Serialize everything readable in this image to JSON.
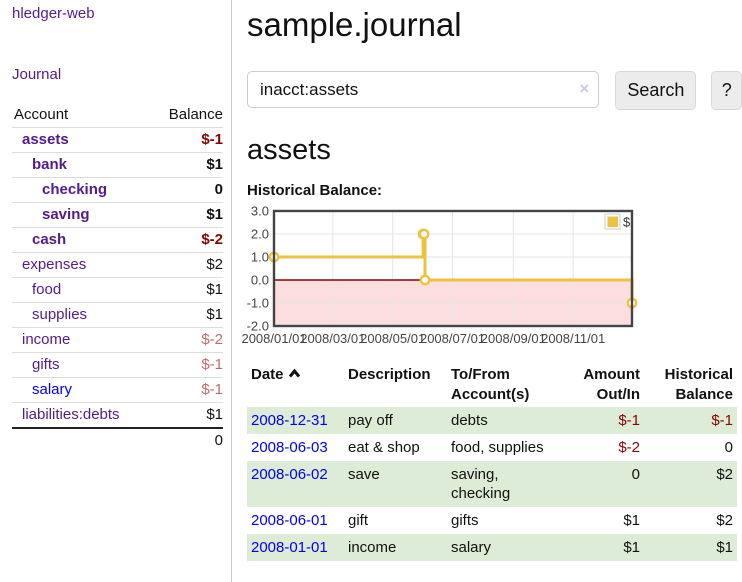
{
  "app": {
    "title": "hledger-web"
  },
  "colors": {
    "purple": "#551a8b",
    "link_blue": "#0000ee",
    "negative_strong": "#8b0000",
    "negative_soft": "#bd6c6c",
    "row_green": "#dcecd7",
    "chart_yellow": "#edc240"
  },
  "sidebar": {
    "journal_link": "Journal",
    "accounts_table": {
      "header_account": "Account",
      "header_balance": "Balance",
      "rows": [
        {
          "name": "assets",
          "indent": 1,
          "bold": true,
          "balance": "$-1",
          "balance_style": "neg-strong"
        },
        {
          "name": "bank",
          "indent": 2,
          "bold": true,
          "balance": "$1",
          "balance_style": "pos-strong"
        },
        {
          "name": "checking",
          "indent": 3,
          "bold": true,
          "balance": "0",
          "balance_style": "pos-strong"
        },
        {
          "name": "saving",
          "indent": 3,
          "bold": true,
          "balance": "$1",
          "balance_style": "pos-strong"
        },
        {
          "name": "cash",
          "indent": 2,
          "bold": true,
          "balance": "$-2",
          "balance_style": "neg-strong"
        },
        {
          "name": "expenses",
          "indent": 1,
          "bold": false,
          "balance": "$2",
          "balance_style": "plain"
        },
        {
          "name": "food",
          "indent": 2,
          "bold": false,
          "balance": "$1",
          "balance_style": "plain"
        },
        {
          "name": "supplies",
          "indent": 2,
          "bold": false,
          "balance": "$1",
          "balance_style": "plain"
        },
        {
          "name": "income",
          "indent": 1,
          "bold": false,
          "balance": "$-2",
          "balance_style": "neg-soft"
        },
        {
          "name": "gifts",
          "indent": 2,
          "bold": false,
          "balance": "$-1",
          "balance_style": "neg-soft"
        },
        {
          "name": "salary",
          "indent": 2,
          "bold": false,
          "balance": "$-1",
          "balance_style": "neg-soft",
          "link_color": "blue"
        },
        {
          "name": "liabilities:debts",
          "indent": 1,
          "bold": false,
          "balance": "$1",
          "balance_style": "plain"
        }
      ],
      "total": "0"
    }
  },
  "header": {
    "title": "sample.journal"
  },
  "search": {
    "value": "inacct:assets",
    "clear_icon": "×",
    "button_label": "Search",
    "help_label": "?"
  },
  "account_page": {
    "heading": "assets"
  },
  "chart_data": {
    "type": "line",
    "step": true,
    "title": "Historical Balance:",
    "series": [
      {
        "name": "$",
        "color": "#edc240",
        "points": [
          [
            "2008-01-01",
            1
          ],
          [
            "2008-06-01",
            2
          ],
          [
            "2008-06-02",
            2
          ],
          [
            "2008-06-03",
            0
          ],
          [
            "2008-12-31",
            -1
          ]
        ]
      }
    ],
    "xlim": [
      "2008-01-01",
      "2008-12-31"
    ],
    "ylim": [
      -2,
      3
    ],
    "x_ticks": [
      "2008/01/01",
      "2008/03/01",
      "2008/05/01",
      "2008/07/01",
      "2008/09/01",
      "2008/11/01"
    ],
    "y_ticks": [
      "3.0",
      "2.0",
      "1.0",
      "0.0",
      "-1.0",
      "-2.0"
    ],
    "legend": {
      "label": "$",
      "position": "top-right"
    },
    "grid": true,
    "negative_region_color": "#fcdede",
    "zero_line_color": "#8b0000",
    "border_color": "#444444"
  },
  "register_table": {
    "headers": {
      "date": "Date",
      "description": "Description",
      "tofrom_1": "To/From",
      "tofrom_2": "Account(s)",
      "amount_1": "Amount",
      "amount_2": "Out/In",
      "balance_1": "Historical",
      "balance_2": "Balance"
    },
    "rows": [
      {
        "date": "2008-12-31",
        "description": "pay off",
        "accounts": "debts",
        "amount": "$-1",
        "amount_neg": true,
        "balance": "$-1",
        "balance_neg": true
      },
      {
        "date": "2008-06-03",
        "description": "eat & shop",
        "accounts": "food, supplies",
        "amount": "$-2",
        "amount_neg": true,
        "balance": "0",
        "balance_neg": false
      },
      {
        "date": "2008-06-02",
        "description": "save",
        "accounts": "saving, checking",
        "amount": "0",
        "amount_neg": false,
        "balance": "$2",
        "balance_neg": false
      },
      {
        "date": "2008-06-01",
        "description": "gift",
        "accounts": "gifts",
        "amount": "$1",
        "amount_neg": false,
        "balance": "$2",
        "balance_neg": false
      },
      {
        "date": "2008-01-01",
        "description": "income",
        "accounts": "salary",
        "amount": "$1",
        "amount_neg": false,
        "balance": "$1",
        "balance_neg": false
      }
    ]
  }
}
